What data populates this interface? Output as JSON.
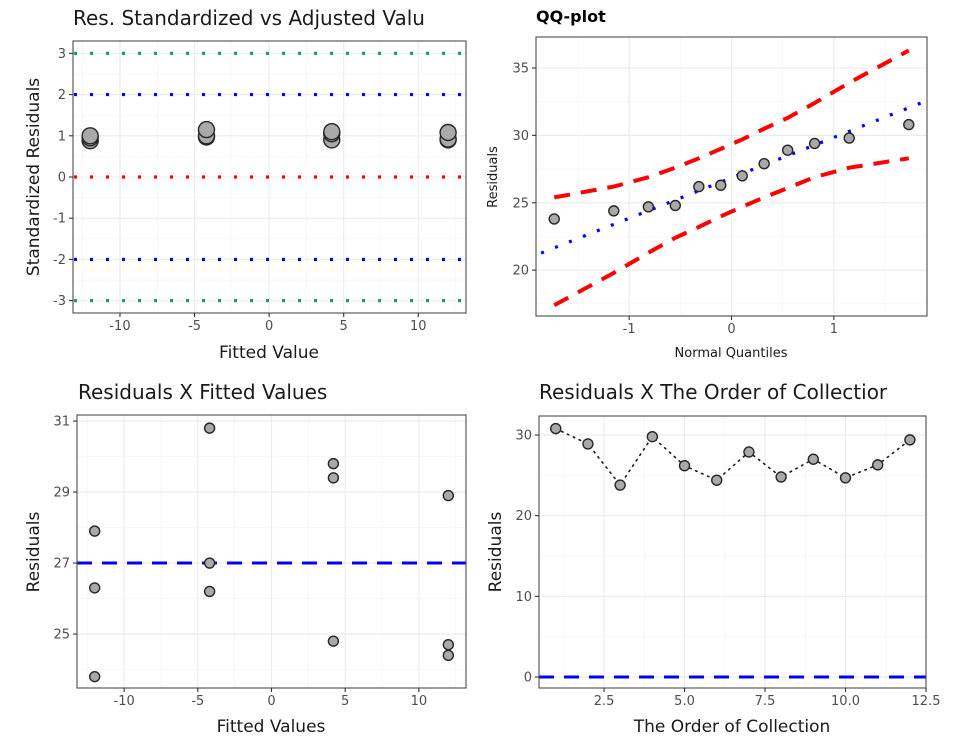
{
  "chart_data": [
    {
      "id": "std-res",
      "type": "scatter",
      "title": "Res. Standardized vs Adjusted Valu",
      "xlabel": "Fitted Value",
      "ylabel": "Standardized Residuals",
      "xlim": [
        -13.15,
        13.2
      ],
      "ylim": [
        -3.3,
        3.3
      ],
      "xticks": [
        -10,
        -5,
        0,
        5,
        10
      ],
      "xtick_labels": [
        "-10",
        "-5",
        "0",
        "5",
        "10"
      ],
      "yticks": [
        -3,
        -2,
        -1,
        0,
        1,
        2,
        3
      ],
      "ytick_labels": [
        "-3",
        "-2",
        "-1",
        "0",
        "1",
        "2",
        "3"
      ],
      "grid": true,
      "reference_lines": [
        {
          "y": 3,
          "color": "#1b9e77",
          "style": "dotted"
        },
        {
          "y": 2,
          "color": "#0000ff",
          "style": "dotted"
        },
        {
          "y": 0,
          "color": "#ff0000",
          "style": "dotted"
        },
        {
          "y": -2,
          "color": "#0000ff",
          "style": "dotted"
        },
        {
          "y": -3,
          "color": "#1b9e77",
          "style": "dotted"
        }
      ],
      "points": [
        {
          "x": -12,
          "y": 0.88
        },
        {
          "x": -12,
          "y": 0.95
        },
        {
          "x": -12,
          "y": 1.0
        },
        {
          "x": -4.2,
          "y": 0.97
        },
        {
          "x": -4.2,
          "y": 1.0
        },
        {
          "x": -4.2,
          "y": 1.15
        },
        {
          "x": 4.2,
          "y": 0.9
        },
        {
          "x": 4.2,
          "y": 1.05
        },
        {
          "x": 4.2,
          "y": 1.1
        },
        {
          "x": 12,
          "y": 0.9
        },
        {
          "x": 12,
          "y": 0.92
        },
        {
          "x": 12,
          "y": 1.08
        }
      ]
    },
    {
      "id": "qq",
      "type": "scatter",
      "title": "QQ-plot",
      "xlabel": "Normal Quantiles",
      "ylabel": "Residuals",
      "xlim": [
        -1.91,
        1.91
      ],
      "ylim": [
        16.6,
        37.3
      ],
      "xticks": [
        -1,
        0,
        1
      ],
      "xtick_labels": [
        "-1",
        "0",
        "1"
      ],
      "yticks": [
        20,
        25,
        30,
        35
      ],
      "ytick_labels": [
        "20",
        "25",
        "30",
        "35"
      ],
      "grid": true,
      "points": [
        {
          "x": -1.732,
          "y": 23.8
        },
        {
          "x": -1.15,
          "y": 24.4
        },
        {
          "x": -0.812,
          "y": 24.7
        },
        {
          "x": -0.549,
          "y": 24.8
        },
        {
          "x": -0.319,
          "y": 26.2
        },
        {
          "x": -0.105,
          "y": 26.3
        },
        {
          "x": 0.105,
          "y": 27.0
        },
        {
          "x": 0.319,
          "y": 27.9
        },
        {
          "x": 0.549,
          "y": 28.9
        },
        {
          "x": 0.812,
          "y": 29.4
        },
        {
          "x": 1.15,
          "y": 29.8
        },
        {
          "x": 1.732,
          "y": 30.8
        }
      ],
      "reference_line": {
        "intercept": 26.85,
        "slope": 3.0,
        "x_from": -1.86,
        "x_to": 1.91,
        "color": "#0000ff",
        "style": "dotted"
      },
      "envelope_upper": [
        {
          "x": -1.732,
          "y": 25.4
        },
        {
          "x": -1.15,
          "y": 26.2
        },
        {
          "x": -0.812,
          "y": 26.9
        },
        {
          "x": -0.549,
          "y": 27.6
        },
        {
          "x": -0.319,
          "y": 28.3
        },
        {
          "x": -0.105,
          "y": 29.0
        },
        {
          "x": 0.105,
          "y": 29.7
        },
        {
          "x": 0.319,
          "y": 30.5
        },
        {
          "x": 0.549,
          "y": 31.3
        },
        {
          "x": 0.812,
          "y": 32.4
        },
        {
          "x": 1.15,
          "y": 33.9
        },
        {
          "x": 1.732,
          "y": 36.3
        }
      ],
      "envelope_lower": [
        {
          "x": -1.732,
          "y": 17.4
        },
        {
          "x": -1.15,
          "y": 19.8
        },
        {
          "x": -0.812,
          "y": 21.3
        },
        {
          "x": -0.549,
          "y": 22.4
        },
        {
          "x": -0.319,
          "y": 23.2
        },
        {
          "x": -0.105,
          "y": 24.0
        },
        {
          "x": 0.105,
          "y": 24.7
        },
        {
          "x": 0.319,
          "y": 25.4
        },
        {
          "x": 0.549,
          "y": 26.1
        },
        {
          "x": 0.812,
          "y": 26.9
        },
        {
          "x": 1.15,
          "y": 27.6
        },
        {
          "x": 1.732,
          "y": 28.3
        }
      ],
      "envelope_color": "#ff0000"
    },
    {
      "id": "res-fitted",
      "type": "scatter",
      "title": "Residuals X Fitted Values",
      "xlabel": "Fitted Values",
      "ylabel": "Residuals",
      "xlim": [
        -13.2,
        13.2
      ],
      "ylim": [
        23.48,
        31.17
      ],
      "xticks": [
        -10,
        -5,
        0,
        5,
        10
      ],
      "xtick_labels": [
        "-10",
        "-5",
        "0",
        "5",
        "10"
      ],
      "yticks": [
        25,
        27,
        29,
        31
      ],
      "ytick_labels": [
        "25",
        "27",
        "29",
        "31"
      ],
      "grid": true,
      "reference_line": {
        "y": 27,
        "color": "#0000ff",
        "style": "dashed"
      },
      "points": [
        {
          "x": -12,
          "y": 27.9
        },
        {
          "x": -12,
          "y": 26.3
        },
        {
          "x": -12,
          "y": 23.8
        },
        {
          "x": -4.2,
          "y": 30.8
        },
        {
          "x": -4.2,
          "y": 27.0
        },
        {
          "x": -4.2,
          "y": 26.2
        },
        {
          "x": 4.2,
          "y": 29.8
        },
        {
          "x": 4.2,
          "y": 29.4
        },
        {
          "x": 4.2,
          "y": 24.8
        },
        {
          "x": 12,
          "y": 28.9
        },
        {
          "x": 12,
          "y": 24.7
        },
        {
          "x": 12,
          "y": 24.4
        }
      ]
    },
    {
      "id": "res-order",
      "type": "line",
      "title": "Residuals X The Order of Collectior",
      "xlabel": "The Order of Collection",
      "ylabel": "Residuals",
      "xlim": [
        0.48,
        12.5
      ],
      "ylim": [
        -1.36,
        32.36
      ],
      "xticks": [
        2.5,
        5.0,
        7.5,
        10.0,
        12.5
      ],
      "xtick_labels": [
        "2.5",
        "5.0",
        "7.5",
        "10.0",
        "12.5"
      ],
      "yticks": [
        0,
        10,
        20,
        30
      ],
      "ytick_labels": [
        "0",
        "10",
        "20",
        "30"
      ],
      "grid": true,
      "reference_line": {
        "y": 0,
        "color": "#0000ff",
        "style": "dashed"
      },
      "x": [
        1,
        2,
        3,
        4,
        5,
        6,
        7,
        8,
        9,
        10,
        11,
        12
      ],
      "values": [
        30.8,
        28.9,
        23.8,
        29.8,
        26.2,
        24.4,
        27.9,
        24.8,
        27.0,
        24.7,
        26.3,
        29.4
      ]
    }
  ]
}
